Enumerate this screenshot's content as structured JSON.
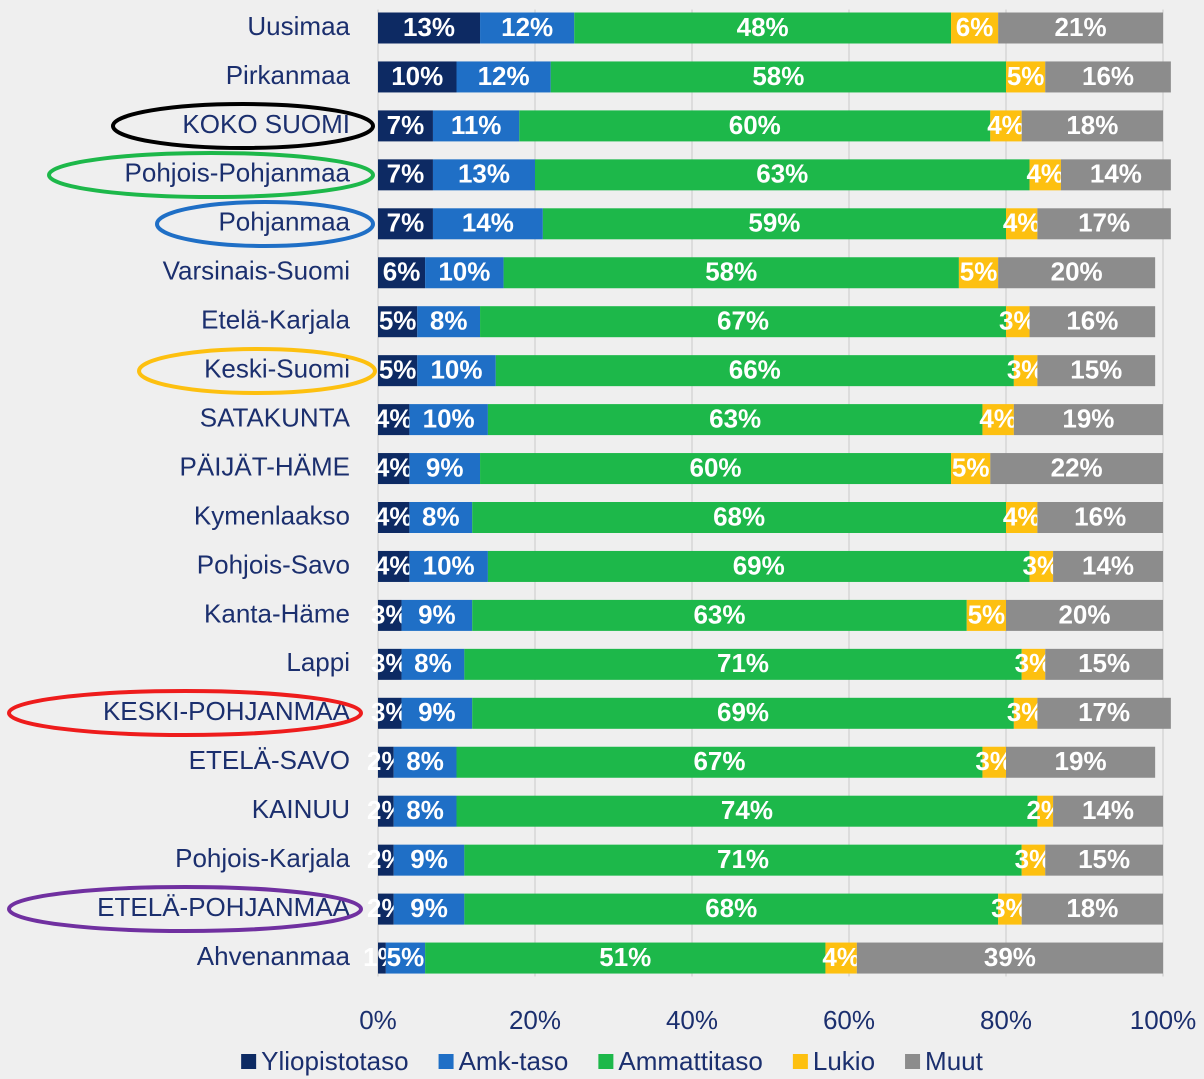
{
  "chart_data": {
    "type": "stacked_barh",
    "categories": [
      "Uusimaa",
      "Pirkanmaa",
      "KOKO SUOMI",
      "Pohjois-Pohjanmaa",
      "Pohjanmaa",
      "Varsinais-Suomi",
      "Etelä-Karjala",
      "Keski-Suomi",
      "SATAKUNTA",
      "PÄIJÄT-HÄME",
      "Kymenlaakso",
      "Pohjois-Savo",
      "Kanta-Häme",
      "Lappi",
      "KESKI-POHJANMAA",
      "ETELÄ-SAVO",
      "KAINUU",
      "Pohjois-Karjala",
      "ETELÄ-POHJANMAA",
      "Ahvenanmaa"
    ],
    "series": [
      {
        "name": "Yliopistotaso",
        "color": "#0d2a63",
        "values": [
          13,
          10,
          7,
          7,
          7,
          6,
          5,
          5,
          4,
          4,
          4,
          4,
          3,
          3,
          3,
          2,
          2,
          2,
          2,
          1
        ],
        "value_labels": [
          "13%",
          "10%",
          "7%",
          "7%",
          "7%",
          "6%",
          "5%",
          "5%",
          "4%",
          "4%",
          "4%",
          "4%",
          "3%",
          "3%",
          "3%",
          "2%",
          "2%",
          "2%",
          "2%",
          "1%"
        ]
      },
      {
        "name": "Amk-taso",
        "color": "#1f6fc6",
        "values": [
          12,
          12,
          11,
          13,
          14,
          10,
          8,
          10,
          10,
          9,
          8,
          10,
          9,
          8,
          9,
          8,
          8,
          9,
          9,
          5
        ],
        "value_labels": [
          "12%",
          "12%",
          "11%",
          "13%",
          "14%",
          "10%",
          "8%",
          "10%",
          "10%",
          "9%",
          "8%",
          "10%",
          "9%",
          "8%",
          "9%",
          "8%",
          "8%",
          "9%",
          "9%",
          "5%"
        ]
      },
      {
        "name": "Ammattitaso",
        "color": "#1db84a",
        "values": [
          48,
          58,
          60,
          63,
          59,
          58,
          67,
          66,
          63,
          60,
          68,
          69,
          63,
          71,
          69,
          67,
          74,
          71,
          68,
          51
        ],
        "value_labels": [
          "48%",
          "58%",
          "60%",
          "63%",
          "59%",
          "58%",
          "67%",
          "66%",
          "63%",
          "60%",
          "68%",
          "69%",
          "63%",
          "71%",
          "69%",
          "67%",
          "74%",
          "71%",
          "68%",
          "51%"
        ]
      },
      {
        "name": "Lukio",
        "color": "#fdc010",
        "values": [
          6,
          5,
          4,
          4,
          4,
          5,
          3,
          3,
          4,
          5,
          4,
          3,
          5,
          3,
          3,
          3,
          2,
          3,
          3,
          4
        ],
        "value_labels": [
          "6%",
          "5%",
          "4%",
          "4%",
          "4%",
          "5%",
          "3%",
          "3%",
          "4%",
          "5%",
          "4%",
          "3%",
          "5%",
          "3%",
          "3%",
          "3%",
          "2%",
          "3%",
          "3%",
          "4%"
        ]
      },
      {
        "name": "Muut",
        "color": "#8c8c8c",
        "values": [
          21,
          16,
          18,
          14,
          17,
          20,
          16,
          15,
          19,
          22,
          16,
          14,
          20,
          15,
          17,
          19,
          14,
          15,
          18,
          39
        ],
        "value_labels": [
          "21%",
          "16%",
          "18%",
          "14%",
          "17%",
          "20%",
          "16%",
          "15%",
          "19%",
          "22%",
          "16%",
          "14%",
          "20%",
          "15%",
          "17%",
          "19%",
          "14%",
          "15%",
          "18%",
          "39%"
        ]
      }
    ],
    "xlim": [
      0,
      100
    ],
    "xticks": [
      {
        "value": 0,
        "label": "0%"
      },
      {
        "value": 20,
        "label": "20%"
      },
      {
        "value": 40,
        "label": "40%"
      },
      {
        "value": 60,
        "label": "60%"
      },
      {
        "value": 80,
        "label": "80%"
      },
      {
        "value": 100,
        "label": "100%"
      }
    ],
    "grid": true,
    "legend": "bottom"
  }
}
